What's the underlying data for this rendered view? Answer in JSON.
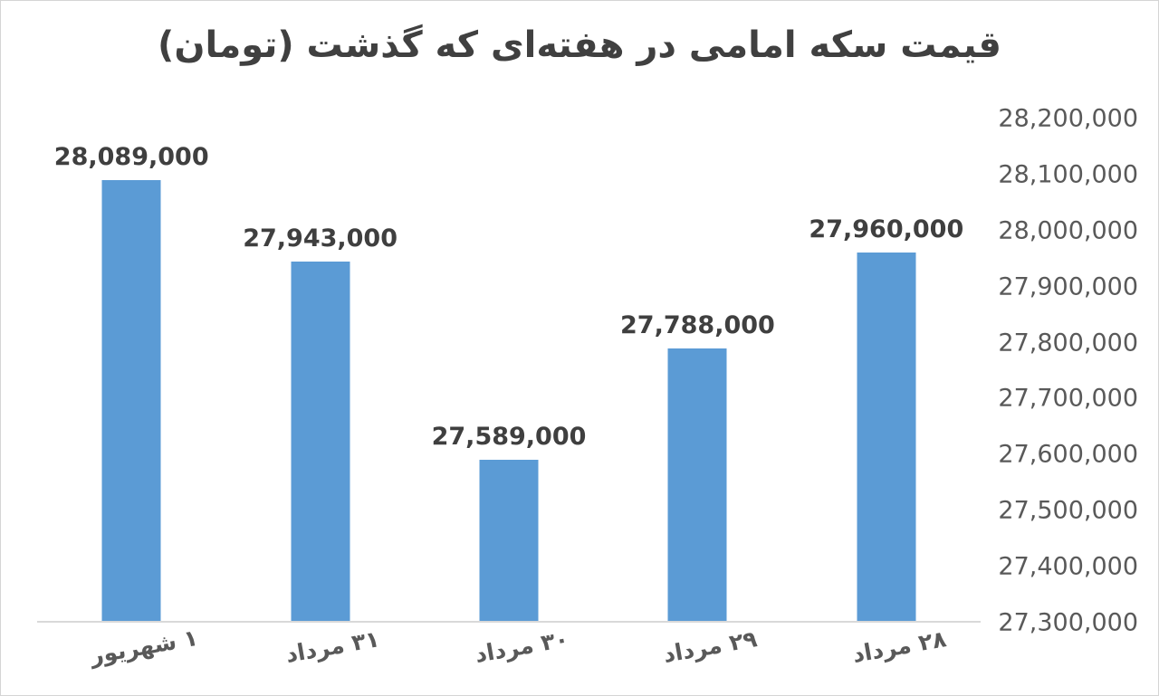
{
  "page": {
    "background_color": "#ffffff",
    "frame_border_color": "#d5d5d5"
  },
  "chart_data": {
    "type": "bar",
    "direction": "rtl",
    "title": "قیمت سکه امامی در هفته‌ای که گذشت (تومان)",
    "title_color": "#404040",
    "bar_color": "#5b9bd5",
    "axis_line_color": "#d9d9d9",
    "data_label_color": "#3f3f3f",
    "tick_label_color": "#595959",
    "categories": [
      "۱ شهریور",
      "۳۱ مرداد",
      "۳۰ مرداد",
      "۲۹ مرداد",
      "۲۸ مرداد"
    ],
    "values": [
      28089000,
      27943000,
      27589000,
      27788000,
      27960000
    ],
    "data_labels": [
      "28,089,000",
      "27,943,000",
      "27,589,000",
      "27,788,000",
      "27,960,000"
    ],
    "xlabel": "",
    "ylabel": "",
    "grid": false,
    "legend": false,
    "y_axis": {
      "side": "right",
      "min": 27300000,
      "max": 28200000,
      "tick_step": 100000,
      "ticks": [
        "28,200,000",
        "28,100,000",
        "28,000,000",
        "27,900,000",
        "27,800,000",
        "27,700,000",
        "27,600,000",
        "27,500,000",
        "27,400,000",
        "27,300,000"
      ]
    }
  }
}
